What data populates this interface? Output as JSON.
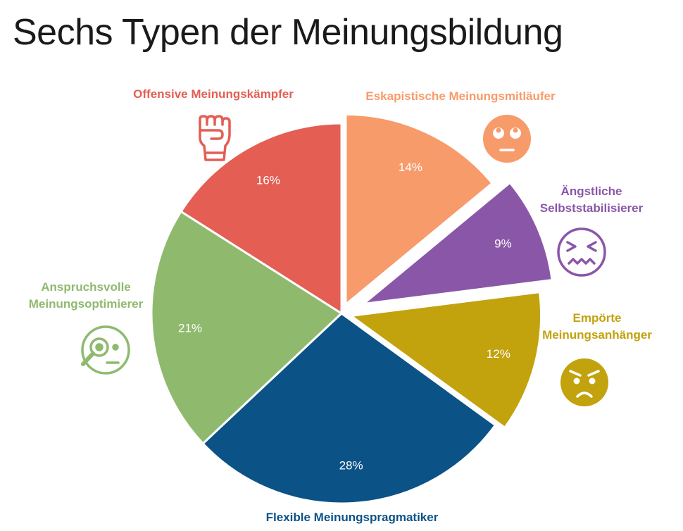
{
  "title": "Sechs Typen der Meinungsbildung",
  "chart_data": {
    "type": "pie",
    "unit": "%",
    "slices": [
      {
        "label_lines": [
          "Eskapistische Meinungsmitläufer"
        ],
        "value": 14,
        "display": "14%",
        "color": "#F79B6A",
        "icon": "eyes-rolled-face-icon"
      },
      {
        "label_lines": [
          "Ängstliche",
          "Selbststabilisierer"
        ],
        "value": 9,
        "display": "9%",
        "color": "#8A57A8",
        "icon": "anxious-face-icon"
      },
      {
        "label_lines": [
          "Empörte",
          "Meinungsanhänger"
        ],
        "value": 12,
        "display": "12%",
        "color": "#C2A20D",
        "icon": "angry-face-icon"
      },
      {
        "label_lines": [
          "Flexible Meinungspragmatiker"
        ],
        "value": 28,
        "display": "28%",
        "color": "#0B5286",
        "icon": null
      },
      {
        "label_lines": [
          "Anspruchsvolle",
          "Meinungsoptimierer"
        ],
        "value": 21,
        "display": "21%",
        "color": "#8FBA6E",
        "icon": "magnifier-face-icon"
      },
      {
        "label_lines": [
          "Offensive Meinungskämpfer"
        ],
        "value": 16,
        "display": "16%",
        "color": "#E45E54",
        "icon": "raised-fist-icon"
      }
    ]
  }
}
